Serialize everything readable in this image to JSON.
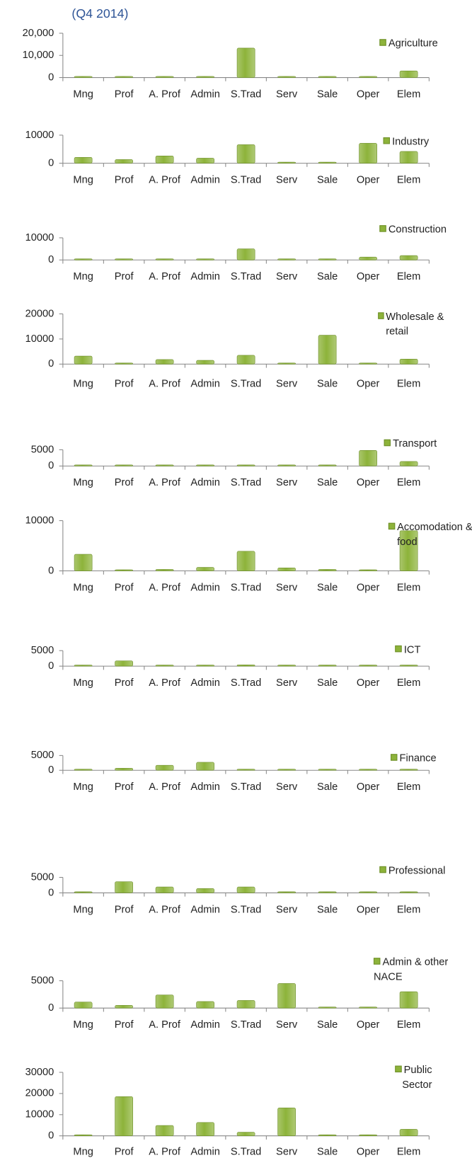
{
  "title": "(Q4 2014)",
  "chart_data": [
    {
      "type": "bar",
      "categories": [
        "Mng",
        "Prof",
        "A. Prof",
        "Admin",
        "S.Trad",
        "Serv",
        "Sale",
        "Oper",
        "Elem"
      ],
      "series": [
        {
          "name": "Agriculture",
          "color": "#8db33a",
          "values": [
            100,
            0,
            100,
            200,
            13300,
            0,
            0,
            0,
            3000
          ]
        }
      ],
      "ylim": [
        0,
        20000
      ],
      "yticks": [
        0,
        {
          "value": 10000,
          "label": "10,000"
        },
        {
          "value": 20000,
          "label": "20,000"
        }
      ],
      "grid": false
    },
    {
      "type": "bar",
      "categories": [
        "Mng",
        "Prof",
        "A. Prof",
        "Admin",
        "S.Trad",
        "Serv",
        "Sale",
        "Oper",
        "Elem"
      ],
      "series": [
        {
          "name": "Industry",
          "color": "#8db33a",
          "values": [
            2100,
            1300,
            2600,
            1800,
            6600,
            0,
            200,
            7100,
            4200
          ]
        }
      ],
      "ylim": [
        0,
        10000
      ],
      "yticks": [
        0,
        10000
      ],
      "grid": false
    },
    {
      "type": "bar",
      "categories": [
        "Mng",
        "Prof",
        "A. Prof",
        "Admin",
        "S.Trad",
        "Serv",
        "Sale",
        "Oper",
        "Elem"
      ],
      "series": [
        {
          "name": "Construction",
          "color": "#8db33a",
          "values": [
            200,
            0,
            100,
            100,
            5000,
            0,
            0,
            1300,
            2000
          ]
        }
      ],
      "ylim": [
        0,
        10000
      ],
      "yticks": [
        0,
        10000
      ],
      "grid": false
    },
    {
      "type": "bar",
      "categories": [
        "Mng",
        "Prof",
        "A. Prof",
        "Admin",
        "S.Trad",
        "Serv",
        "Sale",
        "Oper",
        "Elem"
      ],
      "series": [
        {
          "name": "Wholesale & retail",
          "color": "#8db33a",
          "values": [
            3200,
            100,
            1800,
            1500,
            3500,
            0,
            11500,
            300,
            2000
          ]
        }
      ],
      "ylim": [
        0,
        20000
      ],
      "yticks": [
        0,
        10000,
        20000
      ],
      "grid": false
    },
    {
      "type": "bar",
      "categories": [
        "Mng",
        "Prof",
        "A. Prof",
        "Admin",
        "S.Trad",
        "Serv",
        "Sale",
        "Oper",
        "Elem"
      ],
      "series": [
        {
          "name": "Transport",
          "color": "#8db33a",
          "values": [
            100,
            0,
            0,
            300,
            300,
            100,
            0,
            4800,
            1400
          ]
        }
      ],
      "ylim": [
        0,
        5000
      ],
      "yticks": [
        0,
        5000
      ],
      "grid": false
    },
    {
      "type": "bar",
      "categories": [
        "Mng",
        "Prof",
        "A. Prof",
        "Admin",
        "S.Trad",
        "Serv",
        "Sale",
        "Oper",
        "Elem"
      ],
      "series": [
        {
          "name": "Accomodation & food",
          "color": "#8db33a",
          "values": [
            3300,
            0,
            300,
            700,
            3900,
            600,
            300,
            0,
            8000
          ]
        }
      ],
      "ylim": [
        0,
        10000
      ],
      "yticks": [
        0,
        10000
      ],
      "grid": false
    },
    {
      "type": "bar",
      "categories": [
        "Mng",
        "Prof",
        "A. Prof",
        "Admin",
        "S.Trad",
        "Serv",
        "Sale",
        "Oper",
        "Elem"
      ],
      "series": [
        {
          "name": "ICT",
          "color": "#8db33a",
          "values": [
            200,
            1700,
            300,
            100,
            400,
            100,
            200,
            100,
            300
          ]
        }
      ],
      "ylim": [
        0,
        5000
      ],
      "yticks": [
        0,
        5000
      ],
      "grid": false
    },
    {
      "type": "bar",
      "categories": [
        "Mng",
        "Prof",
        "A. Prof",
        "Admin",
        "S.Trad",
        "Serv",
        "Sale",
        "Oper",
        "Elem"
      ],
      "series": [
        {
          "name": "Finance",
          "color": "#8db33a",
          "values": [
            300,
            700,
            1700,
            2700,
            0,
            0,
            100,
            0,
            0
          ]
        }
      ],
      "ylim": [
        0,
        5000
      ],
      "yticks": [
        0,
        5000
      ],
      "grid": false
    },
    {
      "type": "bar",
      "categories": [
        "Mng",
        "Prof",
        "A. Prof",
        "Admin",
        "S.Trad",
        "Serv",
        "Sale",
        "Oper",
        "Elem"
      ],
      "series": [
        {
          "name": "Professional",
          "color": "#8db33a",
          "values": [
            200,
            3600,
            1900,
            1400,
            1900,
            50,
            200,
            100,
            300
          ]
        }
      ],
      "ylim": [
        0,
        5000
      ],
      "yticks": [
        0,
        5000
      ],
      "grid": false
    },
    {
      "type": "bar",
      "categories": [
        "Mng",
        "Prof",
        "A. Prof",
        "Admin",
        "S.Trad",
        "Serv",
        "Sale",
        "Oper",
        "Elem"
      ],
      "series": [
        {
          "name": "Admin & other NACE",
          "color": "#8db33a",
          "values": [
            1100,
            500,
            2400,
            1200,
            1400,
            4500,
            100,
            200,
            3000
          ]
        }
      ],
      "ylim": [
        0,
        5000
      ],
      "yticks": [
        0,
        5000
      ],
      "grid": false
    },
    {
      "type": "bar",
      "categories": [
        "Mng",
        "Prof",
        "A. Prof",
        "Admin",
        "S.Trad",
        "Serv",
        "Sale",
        "Oper",
        "Elem"
      ],
      "series": [
        {
          "name": "Public Sector",
          "color": "#8db33a",
          "values": [
            100,
            18500,
            4900,
            6300,
            1700,
            13200,
            0,
            300,
            3100
          ]
        }
      ],
      "ylim": [
        0,
        30000
      ],
      "yticks": [
        0,
        10000,
        20000,
        30000
      ],
      "grid": false
    }
  ]
}
